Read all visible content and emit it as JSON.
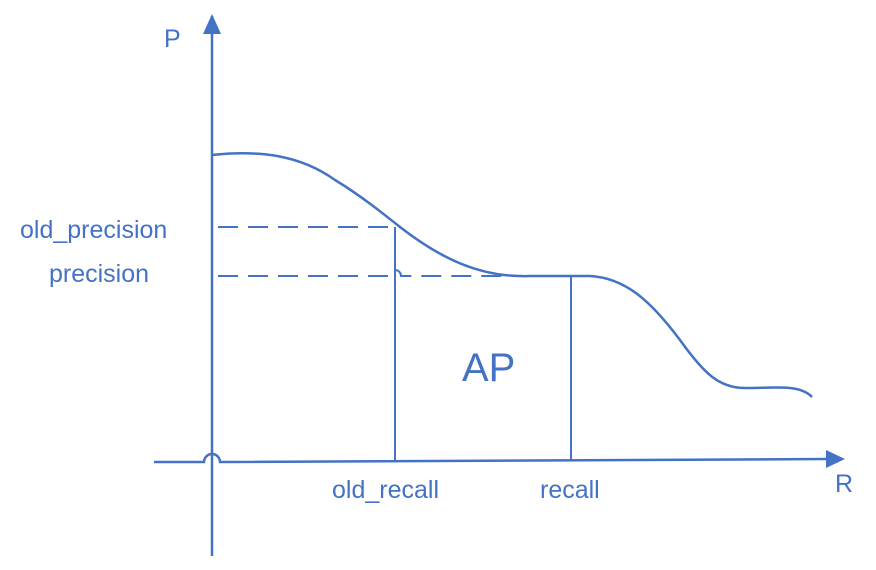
{
  "axes": {
    "y_label": "P",
    "x_label": "R"
  },
  "levels": {
    "old_precision": "old_precision",
    "precision": "precision"
  },
  "positions": {
    "old_recall": "old_recall",
    "recall": "recall"
  },
  "area_label": "AP",
  "colors": {
    "stroke": "#4472c4"
  }
}
